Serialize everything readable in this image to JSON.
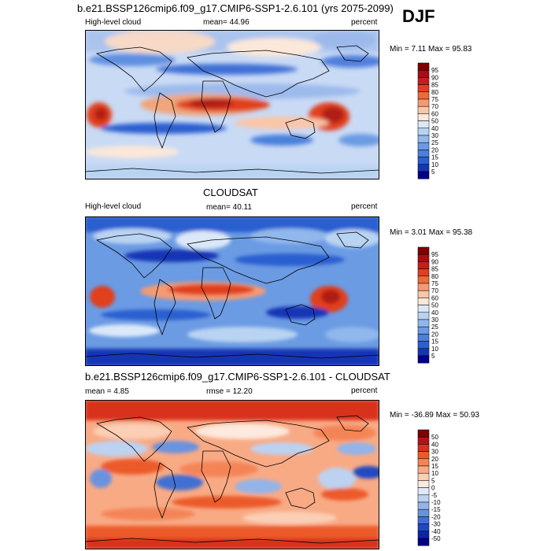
{
  "season": "DJF",
  "panels": [
    {
      "title": "b.e21.BSSP126cmip6.f09_g17.CMIP6-SSP1-2.6.101 (yrs 2075-2099)",
      "left_label": "High-level cloud",
      "center_label": "mean=  44.96",
      "right_label": "percent",
      "minmax": "Min =   7.11 Max =  95.83",
      "colorbar": {
        "labels": [
          "95",
          "90",
          "85",
          "80",
          "75",
          "70",
          "60",
          "50",
          "40",
          "30",
          "25",
          "20",
          "15",
          "10",
          "5"
        ],
        "colors": [
          "#7f0000",
          "#a50f15",
          "#c81d1d",
          "#e0401f",
          "#ef6a3a",
          "#f49a73",
          "#f9c6a8",
          "#fbe8d9",
          "#dbe8f8",
          "#b9d3f2",
          "#91b8ec",
          "#6b9be3",
          "#4a7fdb",
          "#2b5fd0",
          "#1435b5",
          "#00008a"
        ]
      }
    },
    {
      "title": "CLOUDSAT",
      "left_label": "High-level cloud",
      "center_label": "mean=  40.11",
      "right_label": "percent",
      "minmax": "Min =   3.01 Max =  95.38",
      "colorbar": {
        "labels": [
          "95",
          "90",
          "85",
          "80",
          "75",
          "70",
          "60",
          "50",
          "40",
          "30",
          "25",
          "20",
          "15",
          "10",
          "5"
        ],
        "colors": [
          "#7f0000",
          "#a50f15",
          "#c81d1d",
          "#e0401f",
          "#ef6a3a",
          "#f49a73",
          "#f9c6a8",
          "#fbe8d9",
          "#dbe8f8",
          "#b9d3f2",
          "#91b8ec",
          "#6b9be3",
          "#4a7fdb",
          "#2b5fd0",
          "#1435b5",
          "#00008a"
        ]
      }
    },
    {
      "title": "b.e21.BSSP126cmip6.f09_g17.CMIP6-SSP1-2.6.101 - CLOUDSAT",
      "left_label": "mean =   4.85",
      "center_label": "rmse =  12.20",
      "right_label": "percent",
      "minmax": "Min = -36.89 Max =  50.93",
      "colorbar": {
        "labels": [
          "50",
          "40",
          "30",
          "20",
          "15",
          "10",
          "5",
          "0",
          "-5",
          "-10",
          "-15",
          "-20",
          "-30",
          "-40",
          "-50"
        ],
        "colors": [
          "#7f0000",
          "#b2131a",
          "#d8321e",
          "#ec5a2c",
          "#f48456",
          "#f8aa85",
          "#fbcfb6",
          "#fde9dd",
          "#dfe9f7",
          "#bcd2f0",
          "#93b4e8",
          "#6a93de",
          "#4270d2",
          "#2048c0",
          "#0c25a8",
          "#000082"
        ]
      }
    }
  ]
}
